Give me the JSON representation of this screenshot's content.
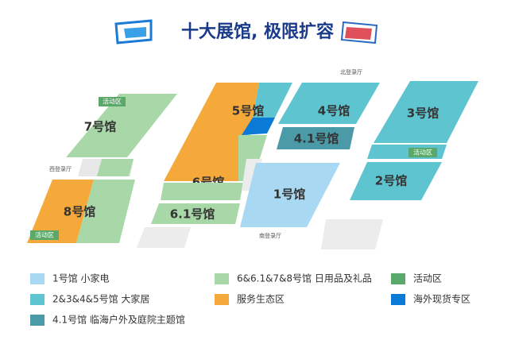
{
  "header": {
    "title": "十大展馆, 极限扩容"
  },
  "halls": [
    "7号馆",
    "8号馆",
    "5号馆",
    "6号馆",
    "6.1号馆",
    "4号馆",
    "4.1号馆",
    "1号馆",
    "3号馆",
    "2号馆"
  ],
  "tags": [
    "活动区",
    "活动区",
    "活动区"
  ],
  "gates": [
    "西登录厅",
    "北登录厅",
    "南登录厅"
  ],
  "legend": [
    "1号馆 小家电",
    "6&6.1&7&8号馆 日用品及礼品",
    "活动区",
    "2&3&4&5号馆 大家居",
    "服务生态区",
    "海外现货专区",
    "4.1号馆 临海户外及庭院主题馆"
  ]
}
